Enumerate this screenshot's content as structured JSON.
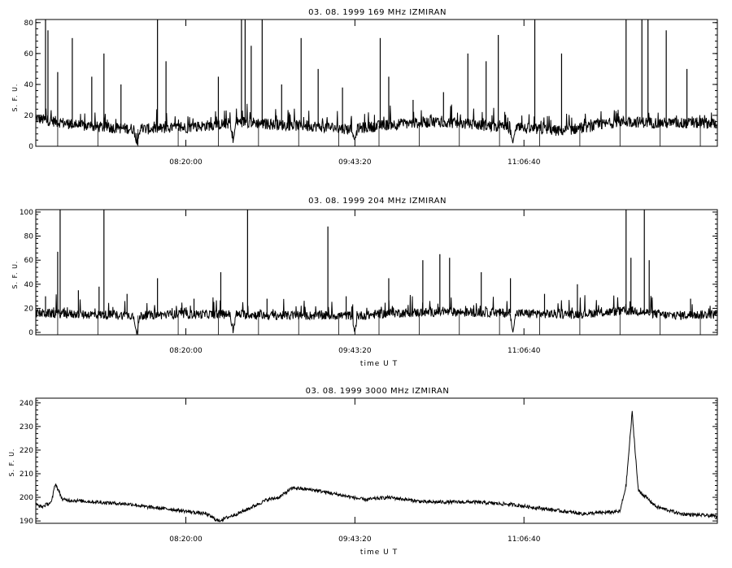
{
  "chart_data": [
    {
      "type": "line",
      "title": "03. 08. 1999    169 MHz    IZMIRAN",
      "ylabel": "S. F. U.",
      "xlabel": "",
      "ylim": [
        0,
        82
      ],
      "yticks": [
        0,
        20,
        40,
        60,
        80
      ],
      "xlim": [
        7.1,
        12.7
      ],
      "xticks": [
        8.333,
        9.722,
        11.111
      ],
      "xticklabels": [
        "08:20:00",
        "09:43:20",
        "11:06:40"
      ],
      "baseline": [
        [
          7.1,
          18
        ],
        [
          7.5,
          13
        ],
        [
          7.95,
          11
        ],
        [
          8.3,
          12
        ],
        [
          8.6,
          14
        ],
        [
          8.8,
          16
        ],
        [
          9.05,
          14
        ],
        [
          9.4,
          13
        ],
        [
          9.7,
          11
        ],
        [
          10.0,
          14
        ],
        [
          10.4,
          16
        ],
        [
          10.7,
          14
        ],
        [
          11.0,
          12
        ],
        [
          11.4,
          10
        ],
        [
          11.6,
          12
        ],
        [
          11.9,
          16
        ],
        [
          12.3,
          15
        ],
        [
          12.7,
          15
        ]
      ],
      "dips": [
        [
          7.93,
          0
        ],
        [
          8.72,
          2
        ],
        [
          9.72,
          4
        ],
        [
          11.02,
          2
        ]
      ],
      "spikes": [
        [
          7.18,
          82
        ],
        [
          7.2,
          75
        ],
        [
          7.28,
          48
        ],
        [
          7.4,
          70
        ],
        [
          7.56,
          45
        ],
        [
          7.66,
          60
        ],
        [
          7.8,
          40
        ],
        [
          8.1,
          82
        ],
        [
          8.17,
          55
        ],
        [
          8.6,
          45
        ],
        [
          8.79,
          82
        ],
        [
          8.82,
          82
        ],
        [
          8.87,
          65
        ],
        [
          8.96,
          82
        ],
        [
          9.12,
          40
        ],
        [
          9.28,
          70
        ],
        [
          9.42,
          50
        ],
        [
          9.62,
          38
        ],
        [
          9.93,
          70
        ],
        [
          10.0,
          45
        ],
        [
          10.2,
          30
        ],
        [
          10.45,
          35
        ],
        [
          10.65,
          60
        ],
        [
          10.8,
          55
        ],
        [
          10.9,
          72
        ],
        [
          11.2,
          82
        ],
        [
          11.42,
          60
        ],
        [
          11.95,
          82
        ],
        [
          12.08,
          82
        ],
        [
          12.13,
          82
        ],
        [
          12.28,
          75
        ],
        [
          12.45,
          50
        ]
      ]
    },
    {
      "type": "line",
      "title": "03. 08. 1999    204 MHz    IZMIRAN",
      "ylabel": "S. F. U.",
      "xlabel": "time  U T",
      "ylim": [
        -2,
        102
      ],
      "yticks": [
        0,
        20,
        40,
        60,
        80,
        100
      ],
      "xlim": [
        7.1,
        12.7
      ],
      "xticks": [
        8.333,
        9.722,
        11.111
      ],
      "xticklabels": [
        "08:20:00",
        "09:43:20",
        "11:06:40"
      ],
      "baseline": [
        [
          7.1,
          16
        ],
        [
          7.5,
          15
        ],
        [
          7.95,
          14
        ],
        [
          8.3,
          15
        ],
        [
          8.8,
          15
        ],
        [
          9.05,
          14
        ],
        [
          9.5,
          14
        ],
        [
          9.8,
          14
        ],
        [
          10.0,
          16
        ],
        [
          10.5,
          17
        ],
        [
          11.0,
          16
        ],
        [
          11.5,
          15
        ],
        [
          12.0,
          18
        ],
        [
          12.3,
          14
        ],
        [
          12.7,
          15
        ]
      ],
      "dips": [
        [
          7.93,
          -2
        ],
        [
          8.72,
          -1
        ],
        [
          9.72,
          0
        ],
        [
          11.02,
          0
        ]
      ],
      "spikes": [
        [
          7.18,
          30
        ],
        [
          7.28,
          67
        ],
        [
          7.3,
          102
        ],
        [
          7.45,
          35
        ],
        [
          7.62,
          38
        ],
        [
          7.66,
          102
        ],
        [
          7.85,
          32
        ],
        [
          8.1,
          45
        ],
        [
          8.4,
          28
        ],
        [
          8.62,
          50
        ],
        [
          8.84,
          102
        ],
        [
          9.0,
          28
        ],
        [
          9.5,
          88
        ],
        [
          9.65,
          30
        ],
        [
          10.0,
          45
        ],
        [
          10.28,
          60
        ],
        [
          10.42,
          65
        ],
        [
          10.5,
          62
        ],
        [
          10.76,
          50
        ],
        [
          11.0,
          45
        ],
        [
          11.28,
          32
        ],
        [
          11.55,
          40
        ],
        [
          11.95,
          102
        ],
        [
          11.99,
          62
        ],
        [
          12.1,
          102
        ],
        [
          12.14,
          60
        ],
        [
          12.48,
          28
        ]
      ]
    },
    {
      "type": "line",
      "title": "03. 08. 1999    3000 MHz    IZMIRAN",
      "ylabel": "S. F. U.",
      "xlabel": "time  U T",
      "ylim": [
        189,
        242
      ],
      "yticks": [
        190,
        200,
        210,
        220,
        230,
        240
      ],
      "xlim": [
        7.1,
        12.7
      ],
      "xticks": [
        8.333,
        9.722,
        11.111
      ],
      "xticklabels": [
        "08:20:00",
        "09:43:20",
        "11:06:40"
      ],
      "baseline": [
        [
          7.1,
          197
        ],
        [
          7.15,
          196
        ],
        [
          7.23,
          198
        ],
        [
          7.26,
          206
        ],
        [
          7.32,
          199
        ],
        [
          7.6,
          198
        ],
        [
          7.9,
          197
        ],
        [
          8.0,
          196
        ],
        [
          8.2,
          195
        ],
        [
          8.5,
          193
        ],
        [
          8.6,
          190
        ],
        [
          8.8,
          194
        ],
        [
          9.0,
          199
        ],
        [
          9.1,
          200
        ],
        [
          9.18,
          203
        ],
        [
          9.22,
          204
        ],
        [
          9.4,
          203
        ],
        [
          9.6,
          201
        ],
        [
          9.8,
          199
        ],
        [
          10.0,
          200
        ],
        [
          10.3,
          198
        ],
        [
          10.5,
          198
        ],
        [
          10.7,
          198
        ],
        [
          11.0,
          197
        ],
        [
          11.3,
          195
        ],
        [
          11.6,
          193
        ],
        [
          11.9,
          194
        ],
        [
          11.95,
          205
        ],
        [
          12.0,
          236
        ],
        [
          12.05,
          203
        ],
        [
          12.2,
          196
        ],
        [
          12.4,
          193
        ],
        [
          12.7,
          192
        ]
      ],
      "dips": [],
      "spikes": []
    }
  ]
}
